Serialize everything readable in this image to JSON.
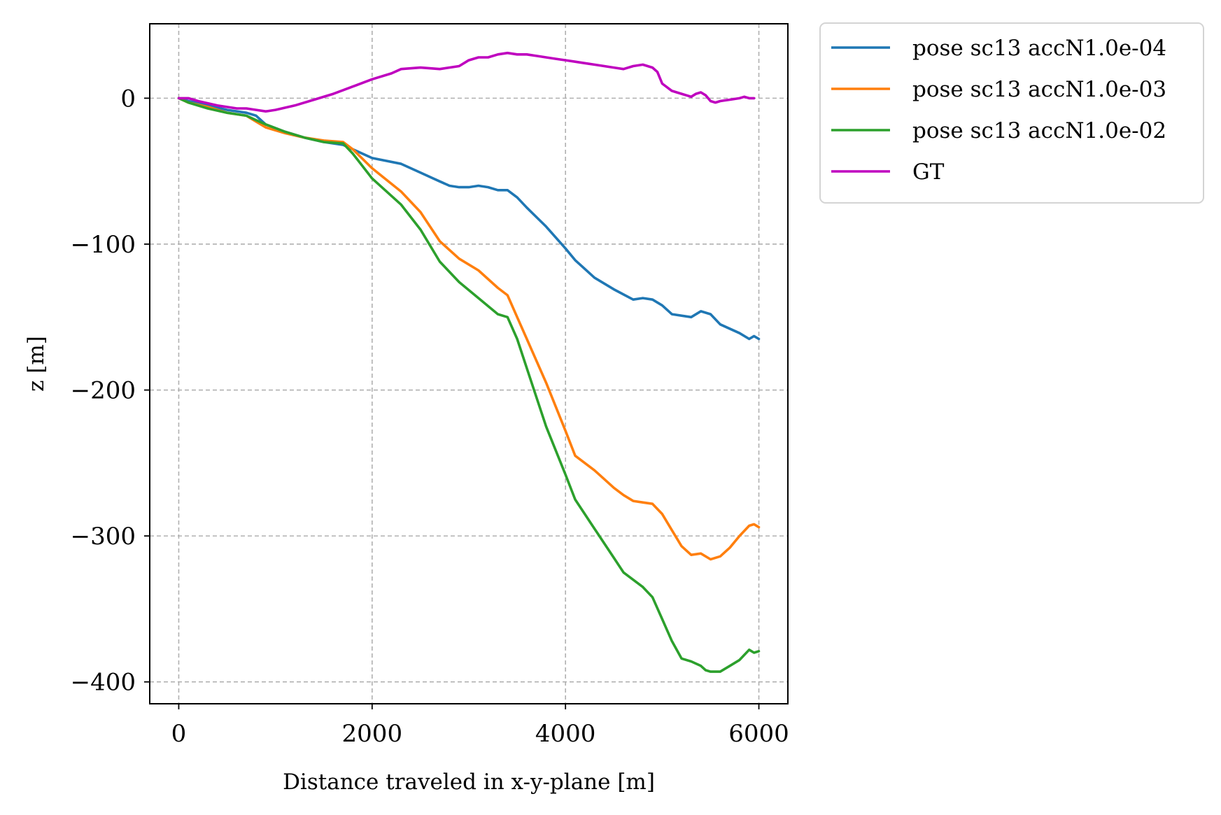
{
  "chart_data": {
    "type": "line",
    "title": "",
    "xlabel": "Distance traveled in x-y-plane [m]",
    "ylabel": "z [m]",
    "xlim": [
      -300,
      6300
    ],
    "ylim": [
      -415,
      51
    ],
    "xticks": [
      0,
      2000,
      4000,
      6000
    ],
    "xtick_labels": [
      "0",
      "2000",
      "4000",
      "6000"
    ],
    "yticks": [
      0,
      -100,
      -200,
      -300,
      -400
    ],
    "ytick_labels": [
      "0",
      "−100",
      "−200",
      "−300",
      "−400"
    ],
    "grid": true,
    "legend_position": "outside-top-right",
    "series": [
      {
        "name": "pose sc13 accN1.0e-04",
        "color": "#1f77b4",
        "x": [
          0,
          100,
          300,
          500,
          700,
          800,
          900,
          1100,
          1300,
          1500,
          1700,
          1800,
          2000,
          2300,
          2500,
          2700,
          2800,
          2900,
          3000,
          3100,
          3200,
          3300,
          3400,
          3500,
          3600,
          3800,
          4000,
          4100,
          4300,
          4500,
          4700,
          4800,
          4900,
          5000,
          5100,
          5300,
          5400,
          5500,
          5600,
          5800,
          5900,
          5950,
          6000
        ],
        "y": [
          0,
          -2,
          -5,
          -8,
          -10,
          -12,
          -18,
          -23,
          -27,
          -30,
          -32,
          -35,
          -41,
          -45,
          -51,
          -57,
          -60,
          -61,
          -61,
          -60,
          -61,
          -63,
          -63,
          -68,
          -75,
          -88,
          -103,
          -111,
          -123,
          -131,
          -138,
          -137,
          -138,
          -142,
          -148,
          -150,
          -146,
          -148,
          -155,
          -161,
          -165,
          -163,
          -165
        ]
      },
      {
        "name": "pose sc13 accN1.0e-03",
        "color": "#ff7f0e",
        "x": [
          0,
          100,
          300,
          500,
          700,
          800,
          900,
          1100,
          1300,
          1500,
          1700,
          1800,
          2000,
          2300,
          2500,
          2700,
          2900,
          3100,
          3300,
          3400,
          3500,
          3600,
          3800,
          4000,
          4100,
          4300,
          4400,
          4500,
          4600,
          4700,
          4800,
          4900,
          5000,
          5100,
          5200,
          5300,
          5400,
          5500,
          5600,
          5700,
          5800,
          5900,
          5950,
          6000
        ],
        "y": [
          0,
          -3,
          -6,
          -10,
          -12,
          -16,
          -20,
          -24,
          -27,
          -29,
          -30,
          -35,
          -48,
          -64,
          -78,
          -98,
          -110,
          -118,
          -130,
          -135,
          -150,
          -165,
          -195,
          -228,
          -245,
          -255,
          -261,
          -267,
          -272,
          -276,
          -277,
          -278,
          -285,
          -296,
          -307,
          -313,
          -312,
          -316,
          -314,
          -308,
          -300,
          -293,
          -292,
          -294
        ]
      },
      {
        "name": "pose sc13 accN1.0e-02",
        "color": "#2ca02c",
        "x": [
          0,
          100,
          300,
          500,
          700,
          800,
          900,
          1100,
          1300,
          1500,
          1700,
          1800,
          2000,
          2300,
          2500,
          2700,
          2900,
          3100,
          3300,
          3400,
          3500,
          3600,
          3800,
          4000,
          4100,
          4300,
          4400,
          4500,
          4600,
          4700,
          4800,
          4900,
          5000,
          5100,
          5200,
          5300,
          5400,
          5450,
          5500,
          5600,
          5700,
          5800,
          5900,
          5950,
          6000
        ],
        "y": [
          0,
          -3,
          -7,
          -10,
          -12,
          -15,
          -18,
          -23,
          -27,
          -30,
          -31,
          -38,
          -55,
          -73,
          -90,
          -112,
          -126,
          -137,
          -148,
          -150,
          -165,
          -185,
          -225,
          -258,
          -275,
          -295,
          -305,
          -315,
          -325,
          -330,
          -335,
          -342,
          -357,
          -372,
          -384,
          -386,
          -389,
          -392,
          -393,
          -393,
          -389,
          -385,
          -378,
          -380,
          -379
        ]
      },
      {
        "name": "GT",
        "color": "#bf00bf",
        "x": [
          0,
          100,
          200,
          400,
          600,
          700,
          800,
          900,
          1000,
          1200,
          1400,
          1600,
          1800,
          2000,
          2200,
          2300,
          2500,
          2700,
          2900,
          3000,
          3100,
          3200,
          3300,
          3400,
          3500,
          3600,
          3700,
          3800,
          3900,
          4000,
          4100,
          4200,
          4300,
          4400,
          4500,
          4600,
          4700,
          4800,
          4900,
          4950,
          5000,
          5100,
          5200,
          5300,
          5350,
          5400,
          5450,
          5500,
          5550,
          5600,
          5700,
          5800,
          5850,
          5900,
          5950
        ],
        "y": [
          0,
          0,
          -2,
          -5,
          -7,
          -7,
          -8,
          -9,
          -8,
          -5,
          -1,
          3,
          8,
          13,
          17,
          20,
          21,
          20,
          22,
          26,
          28,
          28,
          30,
          31,
          30,
          30,
          29,
          28,
          27,
          26,
          25,
          24,
          23,
          22,
          21,
          20,
          22,
          23,
          21,
          18,
          10,
          5,
          3,
          1,
          3,
          4,
          2,
          -2,
          -3,
          -2,
          -1,
          0,
          1,
          0,
          0
        ]
      }
    ]
  }
}
